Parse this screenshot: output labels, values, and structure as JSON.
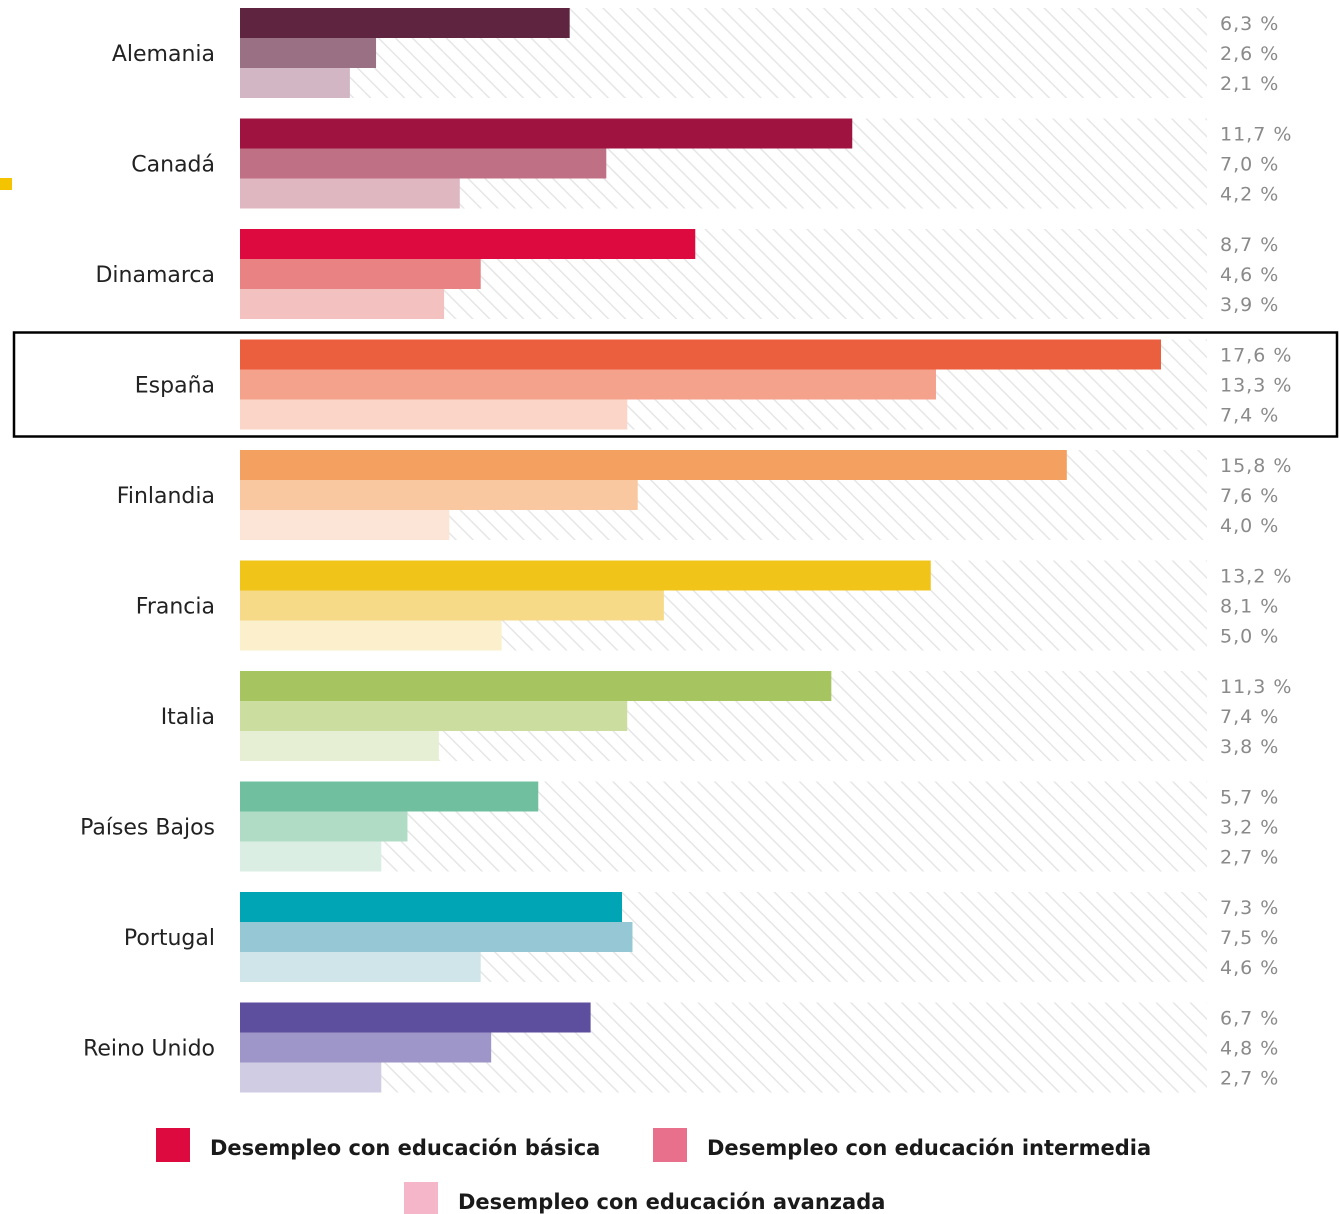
{
  "chart_data": {
    "type": "bar",
    "orientation": "horizontal",
    "title": "",
    "xlabel": "",
    "ylabel": "",
    "xlim": [
      0,
      18.5
    ],
    "grid": false,
    "legend_position": "bottom",
    "highlighted_category": "España",
    "categories": [
      "Alemania",
      "Canadá",
      "Dinamarca",
      "España",
      "Finlandia",
      "Francia",
      "Italia",
      "Países Bajos",
      "Portugal",
      "Reino Unido"
    ],
    "series": [
      {
        "name": "Desempleo con educación básica",
        "values": [
          6.3,
          11.7,
          8.7,
          17.6,
          15.8,
          13.2,
          11.3,
          5.7,
          7.3,
          6.7
        ]
      },
      {
        "name": "Desempleo con educación intermedia",
        "values": [
          2.6,
          7.0,
          4.6,
          13.3,
          7.6,
          8.1,
          7.4,
          3.2,
          7.5,
          4.8
        ]
      },
      {
        "name": "Desempleo con educación avanzada",
        "values": [
          2.1,
          4.2,
          3.9,
          7.4,
          4.0,
          5.0,
          3.8,
          2.7,
          4.6,
          2.7
        ]
      }
    ],
    "value_labels": [
      [
        "6,3 %",
        "2,6 %",
        "2,1 %"
      ],
      [
        "11,7 %",
        "7,0 %",
        "4,2 %"
      ],
      [
        "8,7 %",
        "4,6 %",
        "3,9 %"
      ],
      [
        "17,6 %",
        "13,3 %",
        "7,4 %"
      ],
      [
        "15,8 %",
        "7,6 %",
        "4,0 %"
      ],
      [
        "13,2 %",
        "8,1 %",
        "5,0 %"
      ],
      [
        "11,3 %",
        "7,4 %",
        "3,8 %"
      ],
      [
        "5,7 %",
        "3,2 %",
        "2,7 %"
      ],
      [
        "7,3 %",
        "7,5 %",
        "4,6 %"
      ],
      [
        "6,7 %",
        "4,8 %",
        "2,7 %"
      ]
    ],
    "colors": [
      [
        "#5e2440",
        "#9a7084",
        "#d2b6c4"
      ],
      [
        "#9e1340",
        "#bf7085",
        "#dfb7c1"
      ],
      [
        "#dc0a3e",
        "#e98282",
        "#f4c1c1"
      ],
      [
        "#eb5e3e",
        "#f5a28c",
        "#fbd6c8"
      ],
      [
        "#f4a060",
        "#f9c7a0",
        "#fce5d6"
      ],
      [
        "#f0c419",
        "#f6da88",
        "#fbefcc"
      ],
      [
        "#a6c560",
        "#cbdea0",
        "#e6efd4"
      ],
      [
        "#70c0a0",
        "#b0dcc6",
        "#dbeee4"
      ],
      [
        "#00a5b5",
        "#95c8d4",
        "#d0e5ea"
      ],
      [
        "#5e4e9e",
        "#9e96c8",
        "#d0cce4"
      ]
    ],
    "legend_colors": [
      "#dc0a3e",
      "#e8708c",
      "#f4b6c8"
    ],
    "highlight_color": "#000000",
    "hatch_color": "#e6e6e6",
    "accent_color": "#f5c400"
  }
}
